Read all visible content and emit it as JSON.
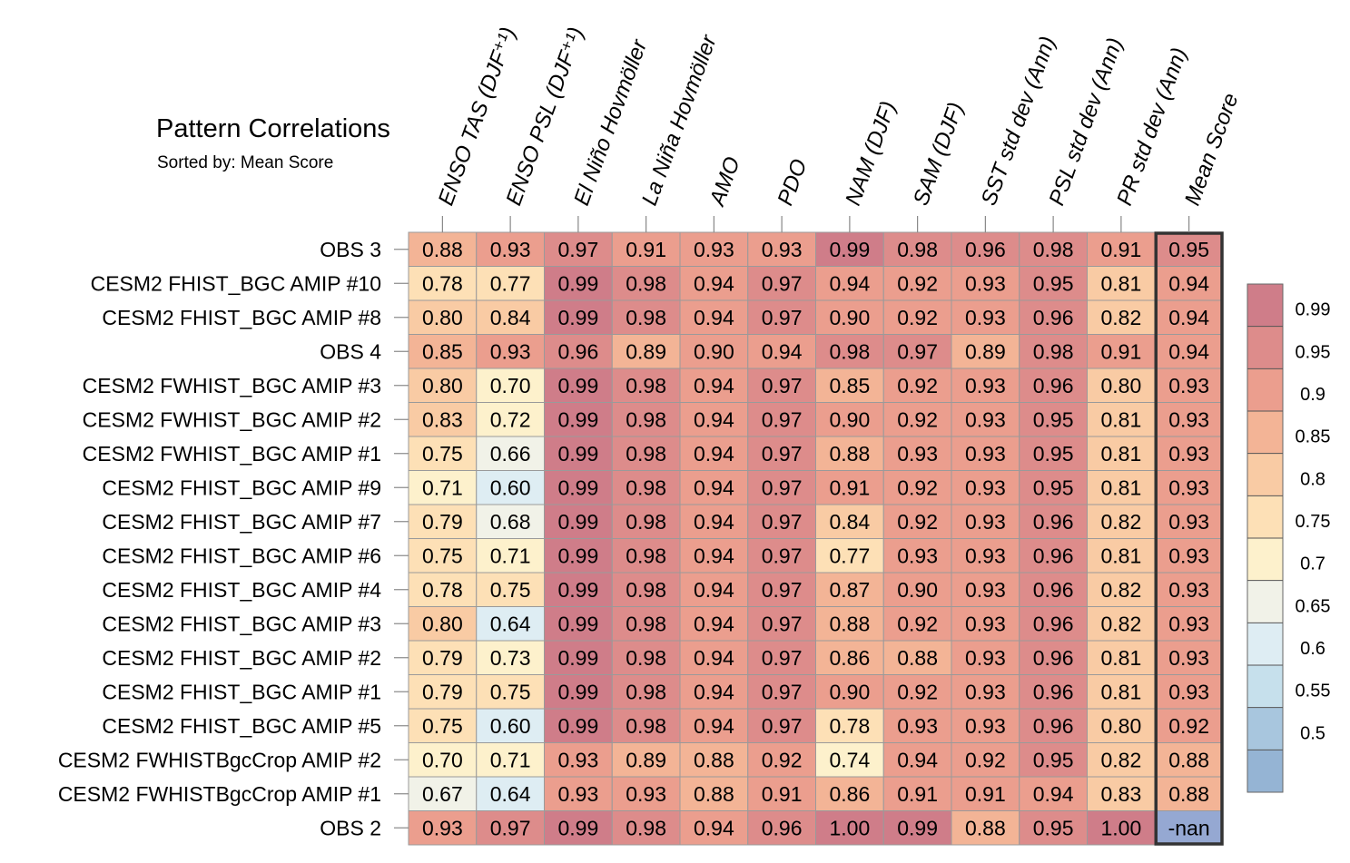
{
  "chart_data": {
    "type": "heatmap",
    "title": "Pattern Correlations",
    "subtitle": "Sorted by: Mean Score",
    "columns": [
      "ENSO TAS (DJF⁺¹)",
      "ENSO PSL (DJF⁺¹)",
      "El Niño Hovmöller",
      "La Niña Hovmöller",
      "AMO",
      "PDO",
      "NAM (DJF)",
      "SAM (DJF)",
      "SST std dev (Ann)",
      "PSL std dev (Ann)",
      "PR std dev (Ann)",
      "Mean Score"
    ],
    "rows": [
      {
        "label": "OBS 3",
        "values": [
          "0.88",
          "0.93",
          "0.97",
          "0.91",
          "0.93",
          "0.93",
          "0.99",
          "0.98",
          "0.96",
          "0.98",
          "0.91",
          "0.95"
        ]
      },
      {
        "label": "CESM2 FHIST_BGC AMIP #10",
        "values": [
          "0.78",
          "0.77",
          "0.99",
          "0.98",
          "0.94",
          "0.97",
          "0.94",
          "0.92",
          "0.93",
          "0.95",
          "0.81",
          "0.94"
        ]
      },
      {
        "label": "CESM2 FHIST_BGC AMIP #8",
        "values": [
          "0.80",
          "0.84",
          "0.99",
          "0.98",
          "0.94",
          "0.97",
          "0.90",
          "0.92",
          "0.93",
          "0.96",
          "0.82",
          "0.94"
        ]
      },
      {
        "label": "OBS 4",
        "values": [
          "0.85",
          "0.93",
          "0.96",
          "0.89",
          "0.90",
          "0.94",
          "0.98",
          "0.97",
          "0.89",
          "0.98",
          "0.91",
          "0.94"
        ]
      },
      {
        "label": "CESM2 FWHIST_BGC AMIP #3",
        "values": [
          "0.80",
          "0.70",
          "0.99",
          "0.98",
          "0.94",
          "0.97",
          "0.85",
          "0.92",
          "0.93",
          "0.96",
          "0.80",
          "0.93"
        ]
      },
      {
        "label": "CESM2 FWHIST_BGC AMIP #2",
        "values": [
          "0.83",
          "0.72",
          "0.99",
          "0.98",
          "0.94",
          "0.97",
          "0.90",
          "0.92",
          "0.93",
          "0.95",
          "0.81",
          "0.93"
        ]
      },
      {
        "label": "CESM2 FWHIST_BGC AMIP #1",
        "values": [
          "0.75",
          "0.66",
          "0.99",
          "0.98",
          "0.94",
          "0.97",
          "0.88",
          "0.93",
          "0.93",
          "0.95",
          "0.81",
          "0.93"
        ]
      },
      {
        "label": "CESM2 FHIST_BGC AMIP #9",
        "values": [
          "0.71",
          "0.60",
          "0.99",
          "0.98",
          "0.94",
          "0.97",
          "0.91",
          "0.92",
          "0.93",
          "0.95",
          "0.81",
          "0.93"
        ]
      },
      {
        "label": "CESM2 FHIST_BGC AMIP #7",
        "values": [
          "0.79",
          "0.68",
          "0.99",
          "0.98",
          "0.94",
          "0.97",
          "0.84",
          "0.92",
          "0.93",
          "0.96",
          "0.82",
          "0.93"
        ]
      },
      {
        "label": "CESM2 FHIST_BGC AMIP #6",
        "values": [
          "0.75",
          "0.71",
          "0.99",
          "0.98",
          "0.94",
          "0.97",
          "0.77",
          "0.93",
          "0.93",
          "0.96",
          "0.81",
          "0.93"
        ]
      },
      {
        "label": "CESM2 FHIST_BGC AMIP #4",
        "values": [
          "0.78",
          "0.75",
          "0.99",
          "0.98",
          "0.94",
          "0.97",
          "0.87",
          "0.90",
          "0.93",
          "0.96",
          "0.82",
          "0.93"
        ]
      },
      {
        "label": "CESM2 FHIST_BGC AMIP #3",
        "values": [
          "0.80",
          "0.64",
          "0.99",
          "0.98",
          "0.94",
          "0.97",
          "0.88",
          "0.92",
          "0.93",
          "0.96",
          "0.82",
          "0.93"
        ]
      },
      {
        "label": "CESM2 FHIST_BGC AMIP #2",
        "values": [
          "0.79",
          "0.73",
          "0.99",
          "0.98",
          "0.94",
          "0.97",
          "0.86",
          "0.88",
          "0.93",
          "0.96",
          "0.81",
          "0.93"
        ]
      },
      {
        "label": "CESM2 FHIST_BGC AMIP #1",
        "values": [
          "0.79",
          "0.75",
          "0.99",
          "0.98",
          "0.94",
          "0.97",
          "0.90",
          "0.92",
          "0.93",
          "0.96",
          "0.81",
          "0.93"
        ]
      },
      {
        "label": "CESM2 FHIST_BGC AMIP #5",
        "values": [
          "0.75",
          "0.60",
          "0.99",
          "0.98",
          "0.94",
          "0.97",
          "0.78",
          "0.93",
          "0.93",
          "0.96",
          "0.80",
          "0.92"
        ]
      },
      {
        "label": "CESM2 FWHISTBgcCrop AMIP #2",
        "values": [
          "0.70",
          "0.71",
          "0.93",
          "0.89",
          "0.88",
          "0.92",
          "0.74",
          "0.94",
          "0.92",
          "0.95",
          "0.82",
          "0.88"
        ]
      },
      {
        "label": "CESM2 FWHISTBgcCrop AMIP #1",
        "values": [
          "0.67",
          "0.64",
          "0.93",
          "0.93",
          "0.88",
          "0.91",
          "0.86",
          "0.91",
          "0.91",
          "0.94",
          "0.83",
          "0.88"
        ]
      },
      {
        "label": "OBS 2",
        "values": [
          "0.93",
          "0.97",
          "0.99",
          "0.98",
          "0.94",
          "0.96",
          "1.00",
          "0.99",
          "0.88",
          "0.95",
          "1.00",
          "-nan"
        ]
      }
    ],
    "colorbar": {
      "tick_labels": [
        "0.99",
        "0.95",
        "0.9",
        "0.85",
        "0.8",
        "0.75",
        "0.7",
        "0.65",
        "0.6",
        "0.55",
        "0.5"
      ],
      "colors": [
        "#cf7d89",
        "#dd8c8b",
        "#eb9e8e",
        "#f3b496",
        "#f9cba4",
        "#fde0b6",
        "#fdf1cc",
        "#f1f2e8",
        "#deedf3",
        "#c6e0ec",
        "#a8c6de",
        "#95b4d4"
      ]
    },
    "highlighted_column": "Mean Score",
    "nan_color": "#95a8d2"
  }
}
